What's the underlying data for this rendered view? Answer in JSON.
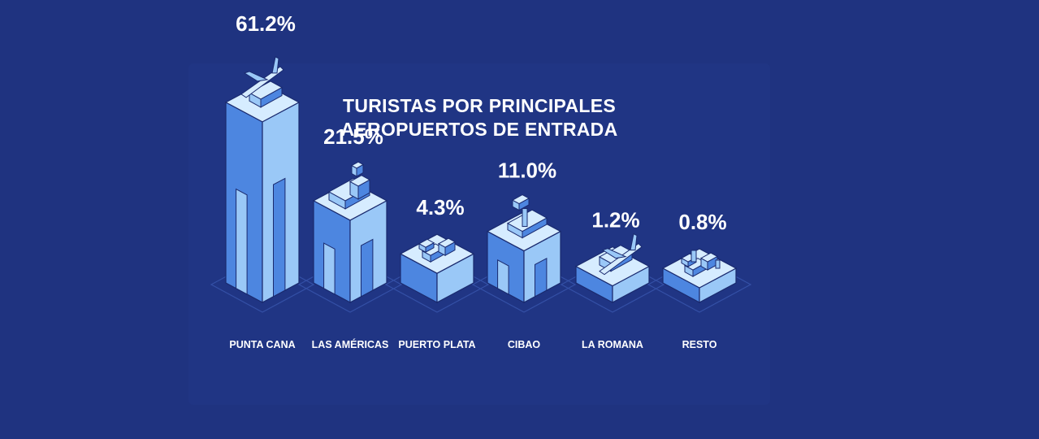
{
  "chart_data": {
    "type": "bar",
    "title": [
      "TURISTAS POR PRINCIPALES",
      "AEROPUERTOS DE ENTRADA"
    ],
    "categories": [
      "PUNTA CANA",
      "LAS AMÉRICAS",
      "PUERTO PLATA",
      "CIBAO",
      "LA ROMANA",
      "RESTO"
    ],
    "values": [
      61.2,
      21.5,
      4.3,
      11.0,
      1.2,
      0.8
    ],
    "value_labels": [
      "61.2%",
      "21.5%",
      "4.3%",
      "11.0%",
      "1.2%",
      "0.8%"
    ],
    "unit": "%",
    "xlabel": "",
    "ylabel": "",
    "grid": false,
    "legend": "none"
  },
  "colors": {
    "background": "#1f3380",
    "bar_front": "#4d86e0",
    "bar_side": "#9ac8f7",
    "bar_top": "#d6ecff",
    "outline": "#1a2a6e",
    "text": "#ffffff"
  },
  "icons": [
    "airplane-icon",
    "terminal-building-icon",
    "control-tower-icon",
    "warehouse-icon"
  ]
}
